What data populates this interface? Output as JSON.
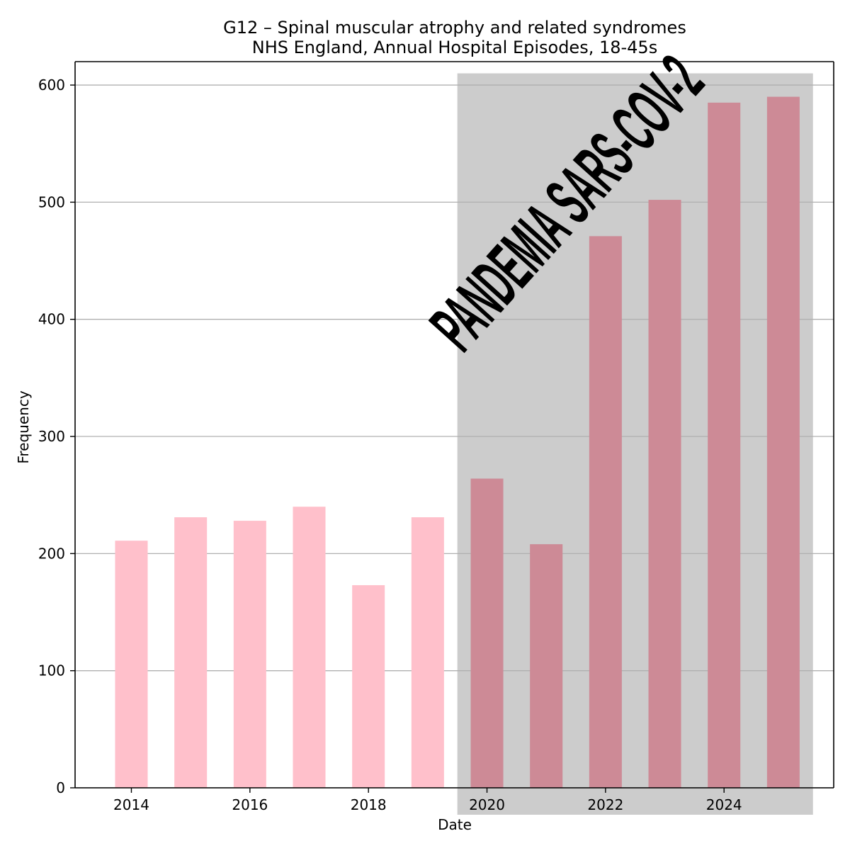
{
  "chart_data": {
    "type": "bar",
    "title": "G12 – Spinal muscular atrophy and related syndromes",
    "subtitle": "NHS England, Annual Hospital Episodes, 18-45s",
    "xlabel": "Date",
    "ylabel": "Frequency",
    "x": [
      2014,
      2015,
      2016,
      2017,
      2018,
      2019,
      2020,
      2021,
      2022,
      2023,
      2024,
      2025
    ],
    "values": [
      211,
      231,
      228,
      240,
      173,
      231,
      264,
      208,
      471,
      502,
      585,
      590
    ],
    "xlim": [
      2013.05,
      2025.85
    ],
    "ylim": [
      0,
      620
    ],
    "xticks": [
      2014,
      2016,
      2018,
      2020,
      2022,
      2024
    ],
    "yticks": [
      0,
      100,
      200,
      300,
      400,
      500,
      600
    ],
    "grid": "horizontal",
    "legend": "none",
    "highlight_region": {
      "x_start": 2019.5,
      "x_end": 2025.5,
      "y_top": 610,
      "label": "PANDEMIA SARS-COV-2"
    },
    "colors": {
      "bar": "#ffc0cb",
      "bar_in_region": "#cd8a96",
      "region": "#cccccc",
      "stamp": "#ff0000",
      "grid": "#b0b0b0"
    }
  }
}
